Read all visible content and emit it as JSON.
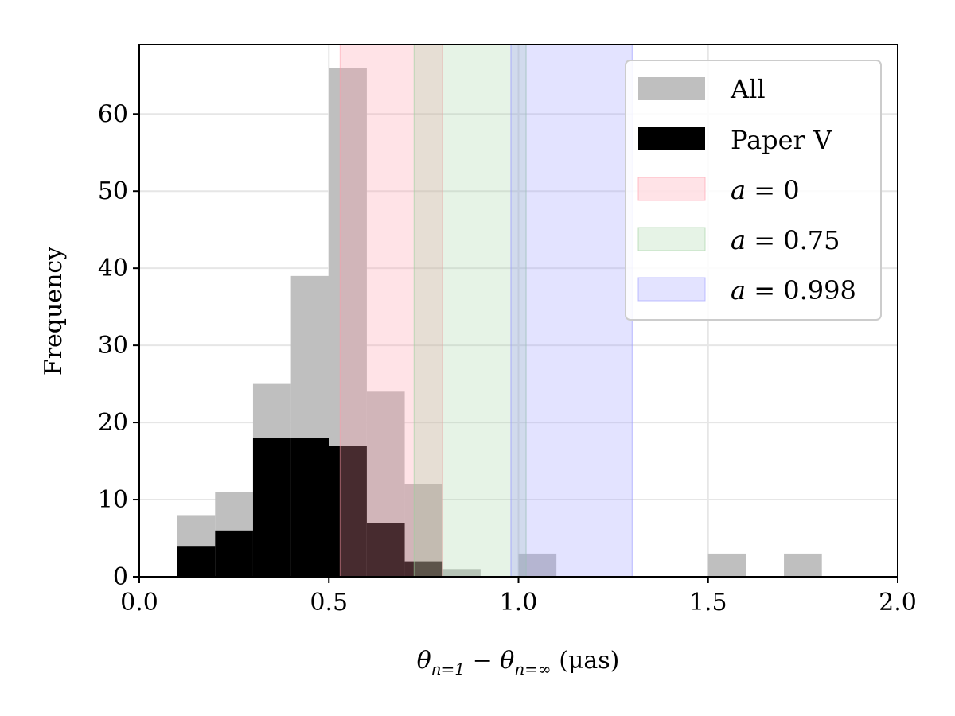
{
  "chart_data": {
    "type": "bar",
    "subtype": "histogram",
    "bin_width": 0.1,
    "xlim": [
      0.0,
      2.0
    ],
    "ylim": [
      0,
      69
    ],
    "xticks": [
      0.0,
      0.5,
      1.0,
      1.5,
      2.0
    ],
    "xtick_labels": [
      "0.0",
      "0.5",
      "1.0",
      "1.5",
      "2.0"
    ],
    "yticks": [
      0,
      10,
      20,
      30,
      40,
      50,
      60
    ],
    "ytick_labels": [
      "0",
      "10",
      "20",
      "30",
      "40",
      "50",
      "60"
    ],
    "grid": true,
    "xlabel_parts": {
      "theta": "θ",
      "sub1": "n=1",
      "minus": "−",
      "sub2": "n=∞",
      "unit": "(μas)"
    },
    "ylabel": "Frequency",
    "legend_position": "upper-right",
    "series": [
      {
        "name": "All",
        "color": "#bfbfbf",
        "bins": [
          [
            0.1,
            8
          ],
          [
            0.2,
            11
          ],
          [
            0.3,
            25
          ],
          [
            0.4,
            39
          ],
          [
            0.5,
            66
          ],
          [
            0.6,
            24
          ],
          [
            0.7,
            12
          ],
          [
            0.8,
            1
          ],
          [
            1.0,
            3
          ],
          [
            1.5,
            3
          ],
          [
            1.7,
            3
          ]
        ]
      },
      {
        "name": "Paper V",
        "color": "#000000",
        "bins": [
          [
            0.1,
            4
          ],
          [
            0.2,
            6
          ],
          [
            0.3,
            18
          ],
          [
            0.4,
            18
          ],
          [
            0.5,
            17
          ],
          [
            0.6,
            7
          ],
          [
            0.7,
            2
          ]
        ]
      }
    ],
    "bands": [
      {
        "name": "a = 0",
        "var": "a",
        "eq": "=",
        "val": "0",
        "xmin": 0.53,
        "xmax": 0.8,
        "color": "#ff9aa8",
        "opacity": 0.28
      },
      {
        "name": "a = 0.75",
        "var": "a",
        "eq": "=",
        "val": "0.75",
        "xmin": 0.725,
        "xmax": 1.02,
        "color": "#9ccf9c",
        "opacity": 0.25
      },
      {
        "name": "a = 0.998",
        "var": "a",
        "eq": "=",
        "val": "0.998",
        "xmin": 0.98,
        "xmax": 1.3,
        "color": "#9a9aff",
        "opacity": 0.28
      }
    ]
  }
}
